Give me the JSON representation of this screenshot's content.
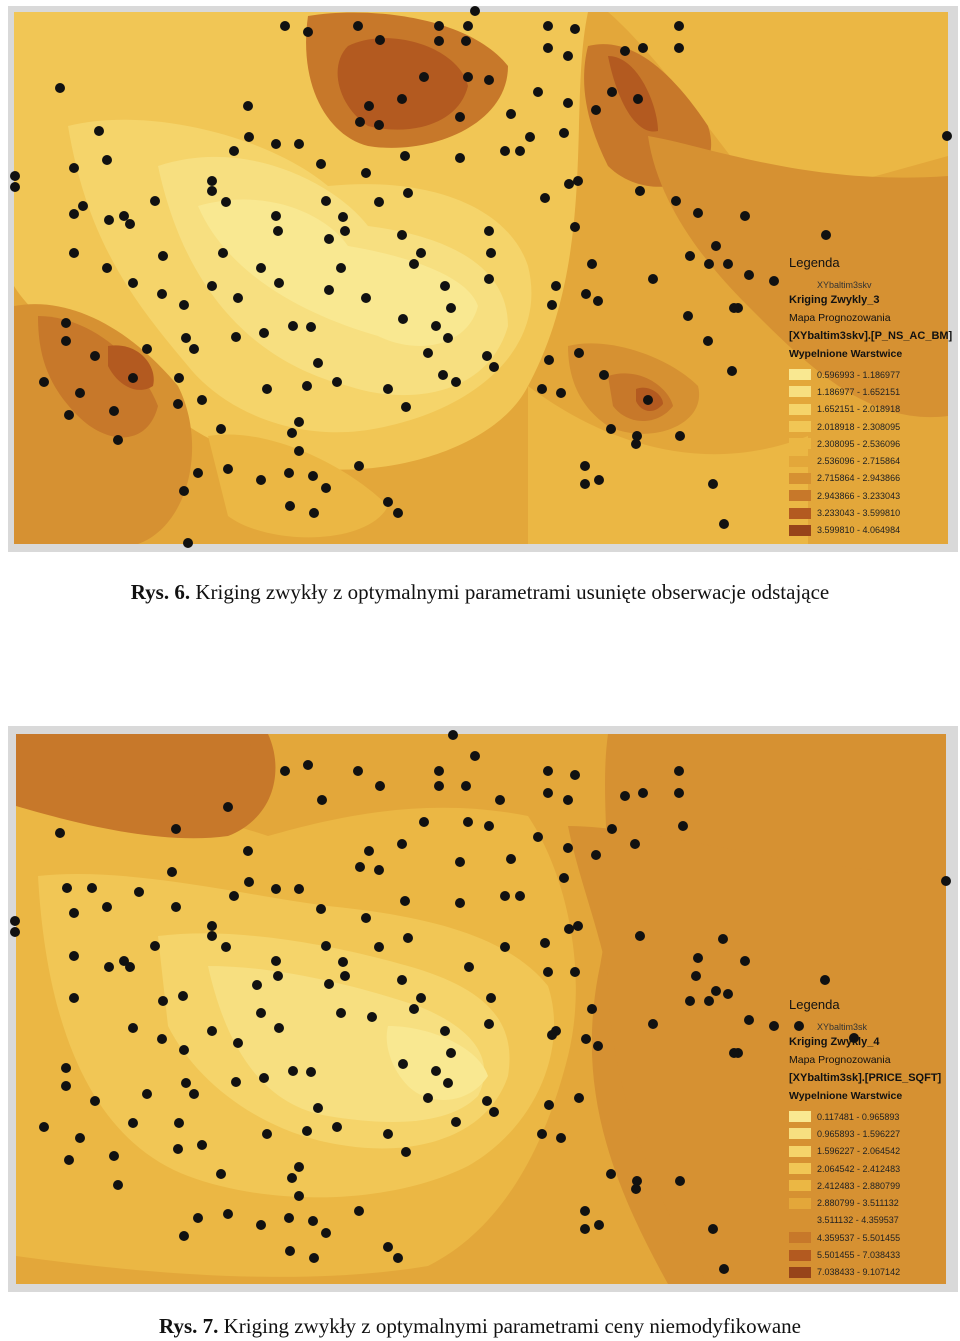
{
  "figures": [
    {
      "caption_num": "Rys. 6.",
      "caption_text": "Kriging zwykły z optymalnymi parametrami usunięte obserwacje odstające",
      "legend": {
        "title": "Legenda",
        "layer": "XYbaltim3skv",
        "model": "Kriging Zwykly_3",
        "map_type": "Mapa Prognozowania",
        "field": "[XYbaltim3skv].[P_NS_AC_BM]",
        "fill_label": "Wypelnione Warstwice",
        "classes": [
          {
            "range": "0.596993 - 1.186977",
            "color": "#f9e891"
          },
          {
            "range": "1.186977 - 1.652151",
            "color": "#f7df80"
          },
          {
            "range": "1.652151 - 2.018918",
            "color": "#f5d46a"
          },
          {
            "range": "2.018918 - 2.308095",
            "color": "#f1c655"
          },
          {
            "range": "2.308095 - 2.536096",
            "color": "#ebb744"
          },
          {
            "range": "2.536096 - 2.715864",
            "color": "#e3a73a"
          },
          {
            "range": "2.715864 - 2.943866",
            "color": "#d69132"
          },
          {
            "range": "2.943866 - 3.233043",
            "color": "#c7782a"
          },
          {
            "range": "3.233043 - 3.599810",
            "color": "#b35a20"
          },
          {
            "range": "3.599810 - 4.064984",
            "color": "#97441a"
          }
        ]
      }
    },
    {
      "caption_num": "Rys. 7.",
      "caption_text": "Kriging zwykły z optymalnymi parametrami ceny niemodyfikowane",
      "legend": {
        "title": "Legenda",
        "layer": "XYbaltim3sk",
        "model": "Kriging Zwykly_4",
        "map_type": "Mapa Prognozowania",
        "field": "[XYbaltim3sk].[PRICE_SQFT]",
        "fill_label": "Wypelnione Warstwice",
        "classes": [
          {
            "range": "0.117481 - 0.965893",
            "color": "#f9e891"
          },
          {
            "range": "0.965893 - 1.596227",
            "color": "#f7df80"
          },
          {
            "range": "1.596227 - 2.064542",
            "color": "#f5d46a"
          },
          {
            "range": "2.064542 - 2.412483",
            "color": "#f1c655"
          },
          {
            "range": "2.412483 - 2.880799",
            "color": "#ebb744"
          },
          {
            "range": "2.880799 - 3.511132",
            "color": "#e3a73a"
          },
          {
            "range": "3.511132 - 4.359537",
            "color": "#d69132"
          },
          {
            "range": "4.359537 - 5.501455",
            "color": "#c7782a"
          },
          {
            "range": "5.501455 - 7.038433",
            "color": "#b35a20"
          },
          {
            "range": "7.038433 - 9.107142",
            "color": "#97441a"
          }
        ]
      }
    }
  ]
}
